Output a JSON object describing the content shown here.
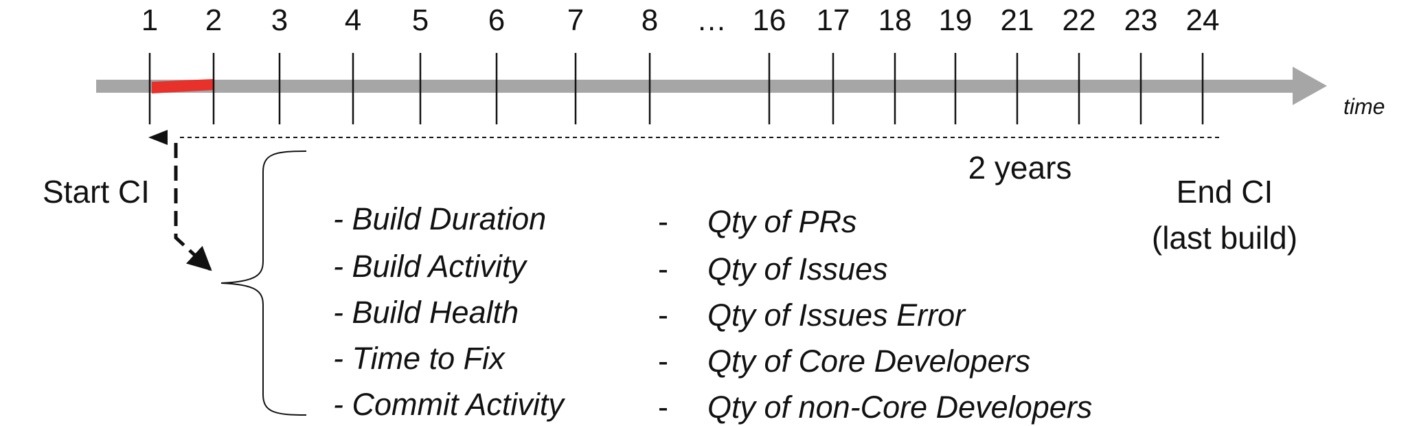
{
  "timeline": {
    "ticks": [
      "1",
      "2",
      "3",
      "4",
      "5",
      "6",
      "7",
      "8",
      "16",
      "17",
      "18",
      "19",
      "21",
      "22",
      "23",
      "24"
    ],
    "gap_label": "…",
    "axis_label": "time",
    "span_label": "2 years",
    "start_label": "Start CI",
    "end_label_line1": "End CI",
    "end_label_line2": "(last build)",
    "highlight_color": "#e8312a",
    "axis_color": "#a6a6a6"
  },
  "metrics": {
    "left": [
      "- Build Duration",
      "- Build Activity",
      "- Build Health",
      "- Time to Fix",
      "- Commit Activity"
    ],
    "right_bullet": "-",
    "right": [
      "Qty of PRs",
      "Qty of Issues",
      "Qty of Issues Error",
      "Qty of Core Developers",
      "Qty of non-Core Developers"
    ]
  }
}
